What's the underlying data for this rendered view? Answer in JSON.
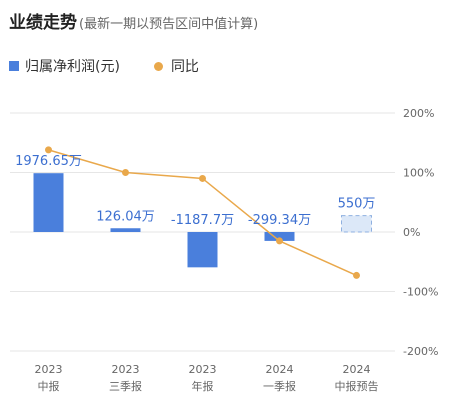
{
  "header": {
    "title": "业绩走势",
    "subtitle": "(最新一期以预告区间中值计算)"
  },
  "legend": {
    "bar_label": "归属净利润(元)",
    "line_label": "同比"
  },
  "colors": {
    "bar": "#4a7fdc",
    "forecast_fill": "#dce8f8",
    "forecast_stroke": "#8fb0e0",
    "line": "#e9a84b",
    "label": "#3c6fd0",
    "grid": "#e6e6e6",
    "tick": "#666666"
  },
  "chart_data": {
    "type": "bar+line",
    "categories": [
      [
        "2023",
        "中报"
      ],
      [
        "2023",
        "三季报"
      ],
      [
        "2023",
        "年报"
      ],
      [
        "2024",
        "一季报"
      ],
      [
        "2024",
        "中报预告"
      ]
    ],
    "series": [
      {
        "name": "归属净利润(元)",
        "kind": "bar",
        "values": [
          1976.65,
          126.04,
          -1187.7,
          -299.34,
          550
        ],
        "labels": [
          "1976.65万",
          "126.04万",
          "-1187.7万",
          "-299.34万",
          "550万"
        ],
        "forecast": [
          false,
          false,
          false,
          false,
          true
        ]
      },
      {
        "name": "同比",
        "kind": "line",
        "axis": "right",
        "values": [
          138,
          100,
          90,
          -15,
          -73
        ]
      }
    ],
    "left_axis": {
      "range": [
        -4000,
        4000
      ],
      "show_ticks": false
    },
    "right_axis": {
      "range": [
        -200,
        200
      ],
      "ticks": [
        "200%",
        "100%",
        "0%",
        "-100%",
        "-200%"
      ]
    },
    "grid": true
  }
}
